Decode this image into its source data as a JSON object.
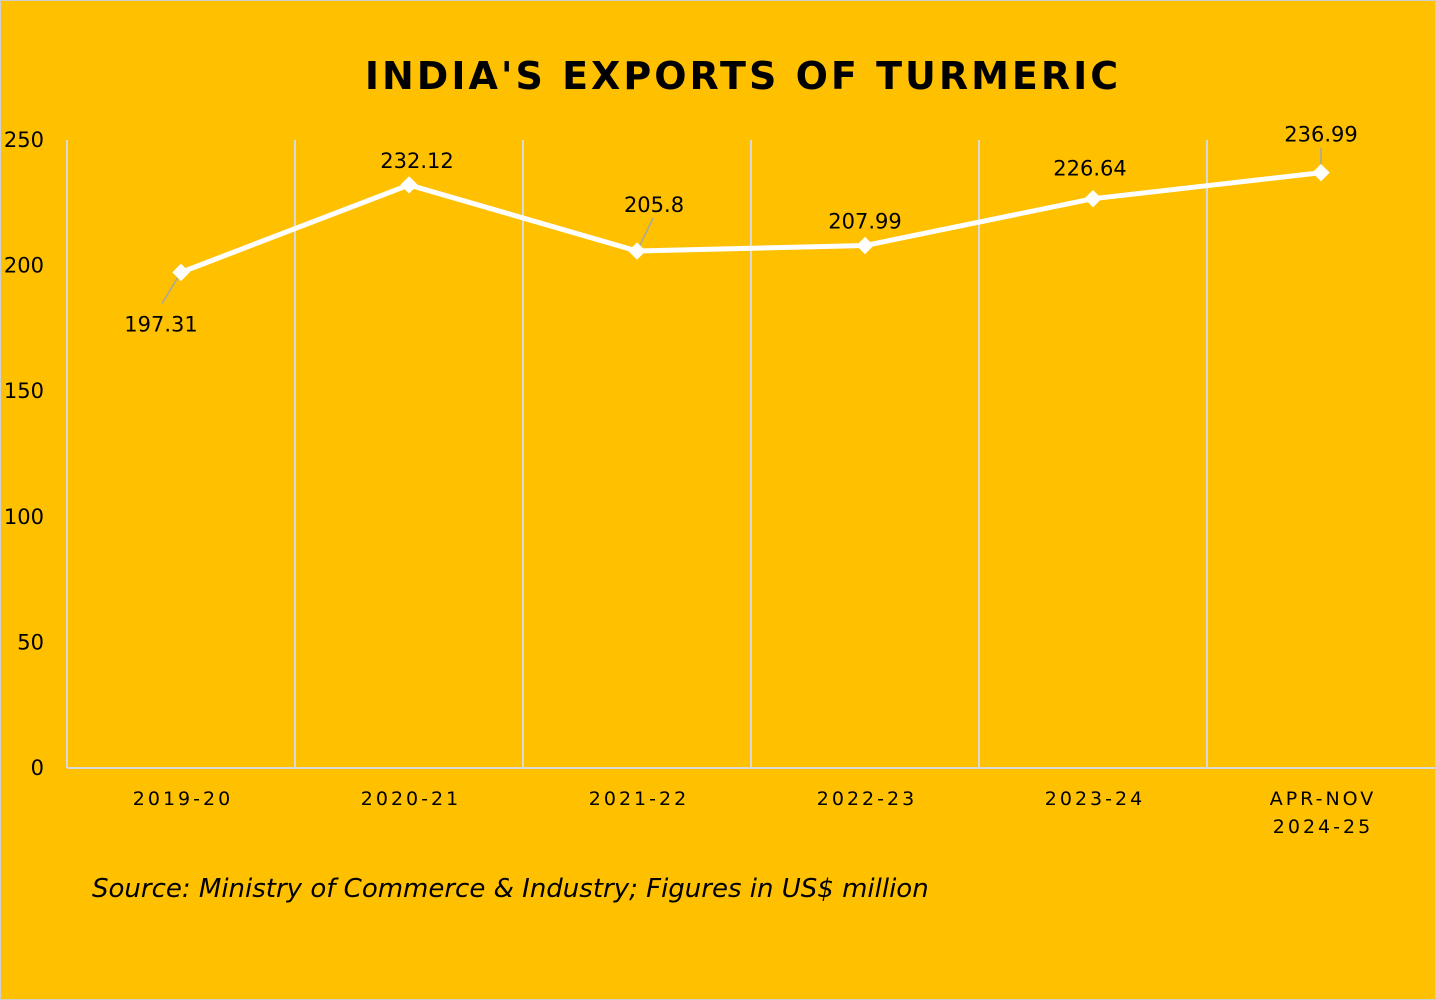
{
  "chart_data": {
    "type": "line",
    "title": "INDIA'S EXPORTS OF TURMERIC",
    "categories": [
      "2019-20",
      "2020-21",
      "2021-22",
      "2022-23",
      "2023-24",
      "APR-NOV 2024-25"
    ],
    "category_lines": [
      [
        "2019-20"
      ],
      [
        "2020-21"
      ],
      [
        "2021-22"
      ],
      [
        "2022-23"
      ],
      [
        "2023-24"
      ],
      [
        "APR-NOV",
        "2024-25"
      ]
    ],
    "values": [
      197.31,
      232.12,
      205.8,
      207.99,
      226.64,
      236.99
    ],
    "data_labels": [
      "197.31",
      "232.12",
      "205.8",
      "207.99",
      "226.64",
      "236.99"
    ],
    "ylim": [
      0,
      250
    ],
    "yticks": [
      0,
      50,
      100,
      150,
      200,
      250
    ],
    "xlabel": "",
    "ylabel": "",
    "grid": "vertical",
    "legend": "none",
    "marker": "diamond",
    "colors": {
      "background": "#FFC000",
      "line": "#FFFFFF",
      "grid": "#D9D9D9",
      "leader": "#A6A6A6"
    }
  },
  "source_note": "Source: Ministry of Commerce & Industry; Figures in US$ million"
}
